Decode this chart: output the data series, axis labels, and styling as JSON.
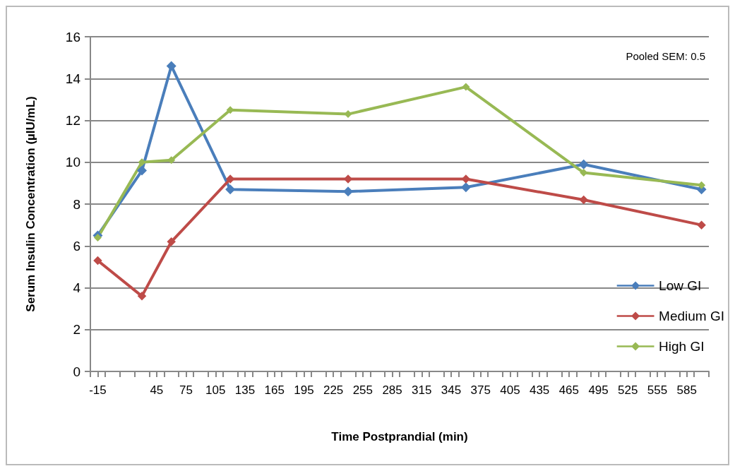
{
  "chart_data": {
    "type": "line",
    "xlabel": "Time Postprandial (min)",
    "ylabel": "Serum Insulin Concentration (µIU/mL)",
    "annotations": [
      "Pooled SEM: 0.5"
    ],
    "x": [
      -15,
      30,
      60,
      120,
      240,
      360,
      480,
      600
    ],
    "xlim": [
      -22.5,
      607.5
    ],
    "xticks": [
      -15,
      45,
      75,
      105,
      135,
      165,
      195,
      225,
      255,
      285,
      315,
      345,
      375,
      405,
      435,
      465,
      495,
      525,
      555,
      585,
      {
        "value": -22.5,
        "label": null
      },
      {
        "value": -7.5,
        "label": null
      },
      {
        "value": 7.5,
        "label": null
      },
      {
        "value": 22.5,
        "label": null
      },
      {
        "value": 37.5,
        "label": null
      },
      {
        "value": 52.5,
        "label": null
      },
      {
        "value": 67.5,
        "label": null
      },
      {
        "value": 82.5,
        "label": null
      },
      {
        "value": 97.5,
        "label": null
      },
      {
        "value": 112.5,
        "label": null
      },
      {
        "value": 127.5,
        "label": null
      },
      {
        "value": 142.5,
        "label": null
      },
      {
        "value": 157.5,
        "label": null
      },
      {
        "value": 172.5,
        "label": null
      },
      {
        "value": 187.5,
        "label": null
      },
      {
        "value": 202.5,
        "label": null
      },
      {
        "value": 217.5,
        "label": null
      },
      {
        "value": 232.5,
        "label": null
      },
      {
        "value": 247.5,
        "label": null
      },
      {
        "value": 262.5,
        "label": null
      },
      {
        "value": 277.5,
        "label": null
      },
      {
        "value": 292.5,
        "label": null
      },
      {
        "value": 307.5,
        "label": null
      },
      {
        "value": 322.5,
        "label": null
      },
      {
        "value": 337.5,
        "label": null
      },
      {
        "value": 352.5,
        "label": null
      },
      {
        "value": 367.5,
        "label": null
      },
      {
        "value": 382.5,
        "label": null
      },
      {
        "value": 397.5,
        "label": null
      },
      {
        "value": 412.5,
        "label": null
      },
      {
        "value": 427.5,
        "label": null
      },
      {
        "value": 442.5,
        "label": null
      },
      {
        "value": 457.5,
        "label": null
      },
      {
        "value": 472.5,
        "label": null
      },
      {
        "value": 487.5,
        "label": null
      },
      {
        "value": 502.5,
        "label": null
      },
      {
        "value": 517.5,
        "label": null
      },
      {
        "value": 532.5,
        "label": null
      },
      {
        "value": 547.5,
        "label": null
      },
      {
        "value": 562.5,
        "label": null
      },
      {
        "value": 577.5,
        "label": null
      },
      {
        "value": 592.5,
        "label": null
      },
      {
        "value": 607.5,
        "label": null
      }
    ],
    "ylim": [
      0,
      16
    ],
    "yticks": [
      0,
      2,
      4,
      6,
      8,
      10,
      12,
      14,
      16
    ],
    "grid": "y",
    "legend": "right",
    "marker": "diamond",
    "line_style": "solid",
    "series": [
      {
        "name": "Low GI",
        "color": "#4a7ebb",
        "values": [
          6.5,
          9.6,
          14.6,
          8.7,
          8.6,
          8.8,
          9.9,
          8.7
        ]
      },
      {
        "name": "Medium GI",
        "color": "#be4b48",
        "values": [
          5.3,
          3.6,
          6.2,
          9.2,
          9.2,
          9.2,
          8.2,
          7.0
        ]
      },
      {
        "name": "High GI",
        "color": "#98b954",
        "values": [
          6.4,
          10.0,
          10.1,
          12.5,
          12.3,
          13.6,
          9.5,
          8.9
        ]
      }
    ]
  }
}
